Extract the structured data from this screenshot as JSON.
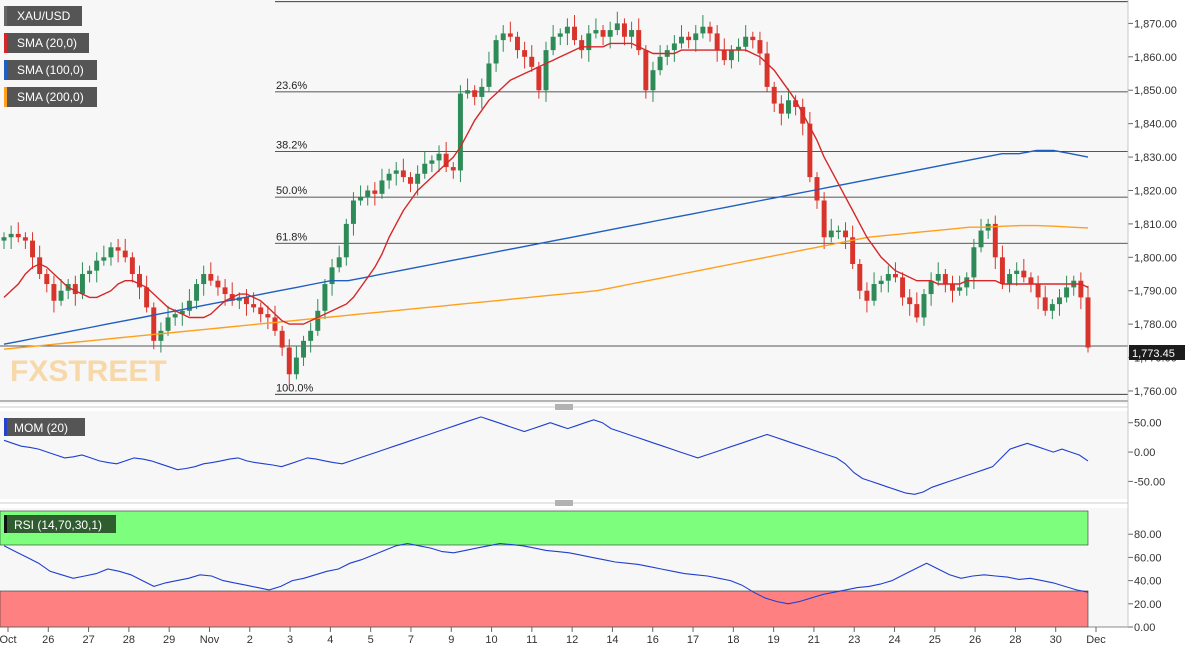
{
  "chart_data": {
    "type": "candlestick",
    "symbol": "XAU/USD",
    "last_price": "1,773.45",
    "legend": [
      {
        "label": "XAU/USD",
        "color": "#666666"
      },
      {
        "label": "SMA (20,0)",
        "color": "#d62728"
      },
      {
        "label": "SMA (100,0)",
        "color": "#1f5fbf"
      },
      {
        "label": "SMA (200,0)",
        "color": "#ff9f1c"
      }
    ],
    "x_ticks": [
      "Oct",
      "26",
      "27",
      "28",
      "29",
      "Nov",
      "2",
      "3",
      "4",
      "5",
      "7",
      "9",
      "10",
      "11",
      "12",
      "14",
      "16",
      "17",
      "18",
      "19",
      "21",
      "23",
      "24",
      "25",
      "26",
      "28",
      "30",
      "Dec"
    ],
    "price_axis": {
      "ylim": [
        1757,
        1877
      ],
      "ticks": [
        "1,870.00",
        "1,860.00",
        "1,850.00",
        "1,840.00",
        "1,830.00",
        "1,820.00",
        "1,810.00",
        "1,800.00",
        "1,790.00",
        "1,780.00",
        "1,770.00",
        "1,760.00"
      ]
    },
    "fibonacci": [
      {
        "label": "23.6%",
        "price": 1849.5
      },
      {
        "label": "38.2%",
        "price": 1831.7
      },
      {
        "label": "50.0%",
        "price": 1818.0
      },
      {
        "label": "61.8%",
        "price": 1804.2
      },
      {
        "label": "100.0%",
        "price": 1759.0
      }
    ],
    "fib_top_price": 1876.5,
    "horizontal_price_line": 1773.45,
    "close_series": [
      1806,
      1807,
      1806,
      1805,
      1800,
      1795,
      1792,
      1787,
      1790,
      1792,
      1789,
      1795,
      1796,
      1799,
      1800,
      1803,
      1802,
      1800,
      1795,
      1791,
      1785,
      1775,
      1778,
      1782,
      1783,
      1784,
      1787,
      1792,
      1795,
      1793,
      1791,
      1789,
      1787,
      1788,
      1786,
      1785,
      1783,
      1782,
      1778,
      1773,
      1765,
      1770,
      1775,
      1778,
      1784,
      1792,
      1797,
      1800,
      1810,
      1817,
      1818,
      1820,
      1819,
      1823,
      1825,
      1826,
      1824,
      1822,
      1825,
      1828,
      1829,
      1831,
      1827,
      1826,
      1849,
      1850,
      1848,
      1851,
      1858,
      1865,
      1867,
      1866,
      1862,
      1860,
      1857,
      1850,
      1862,
      1866,
      1867,
      1869,
      1865,
      1862,
      1867,
      1868,
      1866,
      1868,
      1870,
      1866,
      1868,
      1862,
      1850,
      1856,
      1860,
      1862,
      1864,
      1866,
      1865,
      1867,
      1869,
      1867,
      1862,
      1859,
      1862,
      1863,
      1866,
      1865,
      1861,
      1851,
      1846,
      1843,
      1847,
      1845,
      1840,
      1824,
      1817,
      1806,
      1808,
      1808,
      1806,
      1798,
      1790,
      1787,
      1792,
      1793,
      1795,
      1794,
      1788,
      1786,
      1782,
      1789,
      1793,
      1795,
      1792,
      1790,
      1791,
      1794,
      1803,
      1808,
      1810,
      1800,
      1792,
      1795,
      1796,
      1794,
      1792,
      1788,
      1784,
      1786,
      1788,
      1791,
      1793,
      1788,
      1773
    ],
    "sma_20": [
      1788,
      1790,
      1792,
      1795,
      1797,
      1798,
      1797,
      1795,
      1793,
      1791,
      1790,
      1789,
      1788,
      1788,
      1789,
      1790,
      1792,
      1793,
      1793,
      1792,
      1791,
      1789,
      1787,
      1785,
      1784,
      1783,
      1782,
      1782,
      1782,
      1783,
      1785,
      1787,
      1788,
      1789,
      1789,
      1788,
      1787,
      1785,
      1783,
      1781,
      1780,
      1780,
      1780,
      1781,
      1782,
      1783,
      1784,
      1785,
      1786,
      1788,
      1791,
      1794,
      1797,
      1801,
      1806,
      1810,
      1814,
      1817,
      1820,
      1822,
      1824,
      1826,
      1828,
      1830,
      1833,
      1837,
      1841,
      1844,
      1847,
      1849,
      1851,
      1853,
      1854,
      1855,
      1856,
      1857,
      1858,
      1859,
      1860,
      1861,
      1862,
      1863,
      1863,
      1863,
      1863,
      1864,
      1864,
      1864,
      1864,
      1863,
      1862,
      1861,
      1861,
      1861,
      1861,
      1862,
      1862,
      1862,
      1862,
      1862,
      1862,
      1862,
      1862,
      1862,
      1862,
      1861,
      1860,
      1858,
      1856,
      1853,
      1850,
      1847,
      1843,
      1839,
      1835,
      1830,
      1826,
      1822,
      1818,
      1814,
      1810,
      1806,
      1803,
      1800,
      1798,
      1796,
      1795,
      1794,
      1793,
      1793,
      1793,
      1792,
      1792,
      1792,
      1792,
      1793,
      1793,
      1793,
      1793,
      1793,
      1792,
      1792,
      1792,
      1792,
      1792,
      1792,
      1792,
      1792,
      1792,
      1792,
      1792,
      1792,
      1791
    ],
    "sma_100": [
      1774,
      1775,
      1776,
      1777,
      1778,
      1779,
      1780,
      1781,
      1782,
      1783,
      1784,
      1785,
      1786,
      1787,
      1788,
      1789,
      1790,
      1791,
      1792,
      1793,
      1793,
      1794,
      1795,
      1796,
      1797,
      1798,
      1799,
      1800,
      1801,
      1802,
      1803,
      1804,
      1805,
      1806,
      1807,
      1808,
      1809,
      1810,
      1811,
      1812,
      1813,
      1814,
      1815,
      1816,
      1817,
      1818,
      1819,
      1820,
      1821,
      1822,
      1823,
      1824,
      1825,
      1826,
      1827,
      1828,
      1829,
      1830,
      1831,
      1831,
      1832,
      1832,
      1831,
      1830
    ],
    "sma_200": [
      1772.5,
      1773,
      1773.5,
      1774,
      1774.5,
      1775,
      1775.5,
      1776,
      1776.5,
      1777,
      1777.5,
      1778,
      1778.5,
      1779,
      1779.5,
      1780,
      1780.5,
      1781,
      1781.5,
      1782,
      1782.5,
      1783,
      1783.5,
      1784,
      1784.5,
      1785,
      1785.5,
      1786,
      1786.5,
      1787,
      1787.5,
      1788,
      1788.5,
      1789,
      1789.5,
      1790,
      1791,
      1792,
      1793,
      1794,
      1795,
      1796,
      1797,
      1798,
      1799,
      1800,
      1801,
      1802,
      1803,
      1804,
      1805,
      1806,
      1806.5,
      1807,
      1807.5,
      1808,
      1808.5,
      1809,
      1809,
      1809.3,
      1809.5,
      1809.5,
      1809.3,
      1809,
      1808.8
    ],
    "mom": {
      "label": "MOM (20)",
      "ylim": [
        -80,
        70
      ],
      "ticks": [
        "50.00",
        "0.00",
        "-50.00"
      ],
      "values": [
        20,
        15,
        10,
        8,
        5,
        0,
        -5,
        -10,
        -8,
        -5,
        -10,
        -15,
        -18,
        -20,
        -15,
        -10,
        -12,
        -15,
        -20,
        -25,
        -30,
        -28,
        -25,
        -20,
        -18,
        -15,
        -12,
        -10,
        -15,
        -18,
        -20,
        -22,
        -25,
        -20,
        -15,
        -10,
        -12,
        -15,
        -18,
        -20,
        -15,
        -10,
        -5,
        0,
        5,
        10,
        15,
        20,
        25,
        30,
        35,
        40,
        45,
        50,
        55,
        60,
        55,
        50,
        45,
        40,
        35,
        40,
        45,
        50,
        45,
        40,
        45,
        50,
        55,
        50,
        40,
        35,
        30,
        25,
        20,
        15,
        10,
        5,
        0,
        -5,
        -10,
        -5,
        0,
        5,
        10,
        15,
        20,
        25,
        30,
        25,
        20,
        15,
        10,
        5,
        0,
        -5,
        -10,
        -20,
        -35,
        -45,
        -50,
        -55,
        -60,
        -65,
        -70,
        -72,
        -68,
        -60,
        -55,
        -50,
        -45,
        -40,
        -35,
        -30,
        -25,
        -10,
        5,
        10,
        15,
        10,
        5,
        0,
        5,
        0,
        -5,
        -15
      ]
    },
    "rsi": {
      "label": "RSI (14,70,30,1)",
      "ylim": [
        0,
        100
      ],
      "overbought": 70,
      "oversold": 30,
      "ticks": [
        "80.00",
        "60.00",
        "40.00",
        "20.00",
        "0.00"
      ],
      "values": [
        70,
        65,
        60,
        55,
        48,
        45,
        42,
        44,
        46,
        50,
        48,
        45,
        40,
        35,
        38,
        40,
        42,
        45,
        44,
        40,
        38,
        36,
        34,
        32,
        35,
        40,
        42,
        45,
        48,
        50,
        55,
        58,
        62,
        66,
        70,
        72,
        70,
        68,
        65,
        64,
        66,
        68,
        70,
        72,
        71,
        70,
        68,
        66,
        65,
        64,
        62,
        60,
        58,
        56,
        55,
        54,
        52,
        50,
        48,
        46,
        45,
        44,
        42,
        40,
        36,
        30,
        25,
        22,
        20,
        22,
        25,
        28,
        30,
        32,
        34,
        35,
        37,
        40,
        45,
        50,
        55,
        50,
        45,
        42,
        44,
        45,
        44,
        43,
        41,
        42,
        40,
        38,
        35,
        32,
        30
      ]
    },
    "watermark": "FXSTREET"
  }
}
